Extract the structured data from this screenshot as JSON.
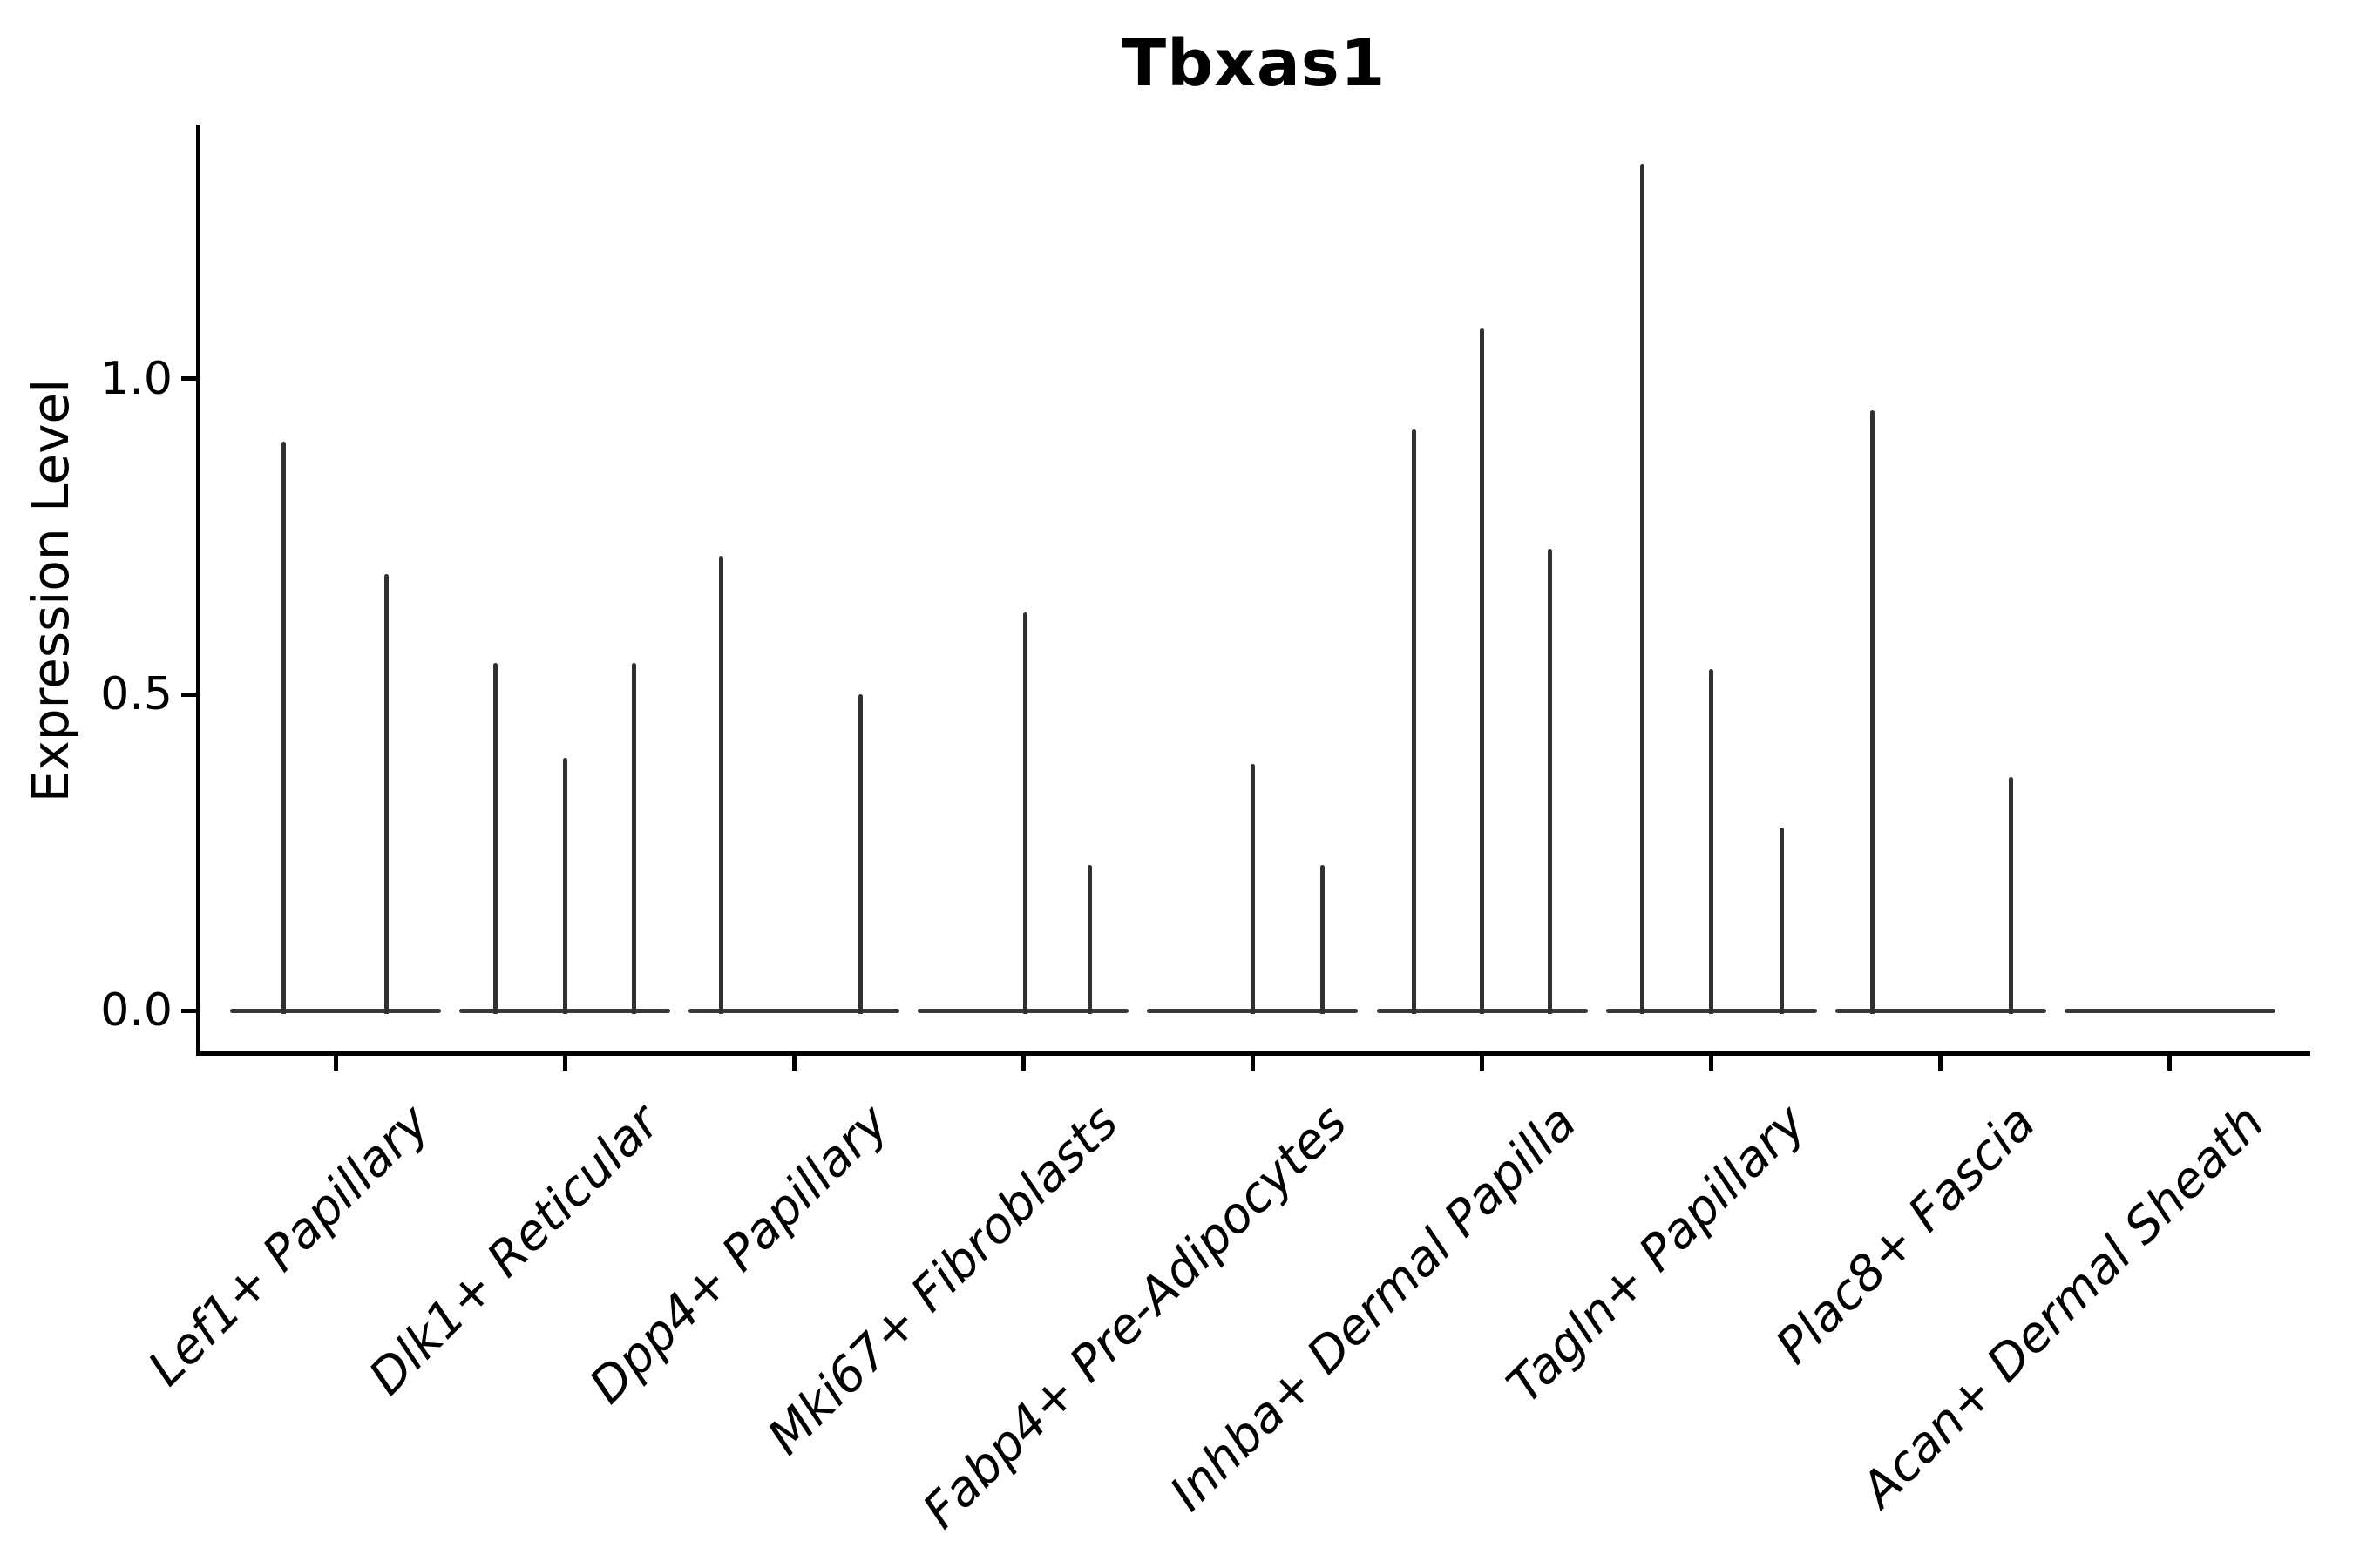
{
  "chart_data": {
    "type": "violin",
    "title": "Tbxas1",
    "ylabel": "Expression Level",
    "xlabel": "",
    "ylim": [
      0,
      1.4
    ],
    "grid": false,
    "legend": null,
    "y_ticks": [
      {
        "label": "0.0",
        "value": 0.0
      },
      {
        "label": "0.5",
        "value": 0.5
      },
      {
        "label": "1.0",
        "value": 1.0
      }
    ],
    "categories": [
      "Lef1+ Papillary",
      "Dlk1+ Reticular",
      "Dpp4+ Papillary",
      "Mki67+ Fibroblasts",
      "Fabp4+ Pre-Adipocytes",
      "Inhba+ Dermal Papilla",
      "Tagln+ Papillary",
      "Plac8+ Fascia",
      "Acan+ Dermal Sheath"
    ],
    "violins": [
      {
        "category": "Lef1+ Papillary",
        "spikes": [
          {
            "dx": -60,
            "value": 0.9
          },
          {
            "dx": 58,
            "value": 0.69
          }
        ]
      },
      {
        "category": "Dlk1+ Reticular",
        "spikes": [
          {
            "dx": -80,
            "value": 0.55
          },
          {
            "dx": 0,
            "value": 0.4
          },
          {
            "dx": 79,
            "value": 0.55
          }
        ]
      },
      {
        "category": "Dpp4+ Papillary",
        "spikes": [
          {
            "dx": -84,
            "value": 0.72
          },
          {
            "dx": 76,
            "value": 0.5
          }
        ]
      },
      {
        "category": "Mki67+ Fibroblasts",
        "spikes": [
          {
            "dx": 2,
            "value": 0.63
          },
          {
            "dx": 76,
            "value": 0.23
          }
        ]
      },
      {
        "category": "Fabp4+ Pre-Adipocytes",
        "spikes": [
          {
            "dx": 0,
            "value": 0.39
          },
          {
            "dx": 80,
            "value": 0.23
          }
        ]
      },
      {
        "category": "Inhba+ Dermal Papilla",
        "spikes": [
          {
            "dx": -78,
            "value": 0.92
          },
          {
            "dx": 0,
            "value": 1.08
          },
          {
            "dx": 78,
            "value": 0.73
          }
        ]
      },
      {
        "category": "Tagln+ Papillary",
        "spikes": [
          {
            "dx": -79,
            "value": 1.34
          },
          {
            "dx": 0,
            "value": 0.54
          },
          {
            "dx": 81,
            "value": 0.29
          }
        ]
      },
      {
        "category": "Plac8+ Fascia",
        "spikes": [
          {
            "dx": -78,
            "value": 0.95
          },
          {
            "dx": 81,
            "value": 0.37
          }
        ]
      },
      {
        "category": "Acan+ Dermal Sheath",
        "spikes": []
      }
    ],
    "colors": {
      "spike": "#303030",
      "baseline": "#383838",
      "axis": "#000000",
      "text": "#000000"
    }
  }
}
